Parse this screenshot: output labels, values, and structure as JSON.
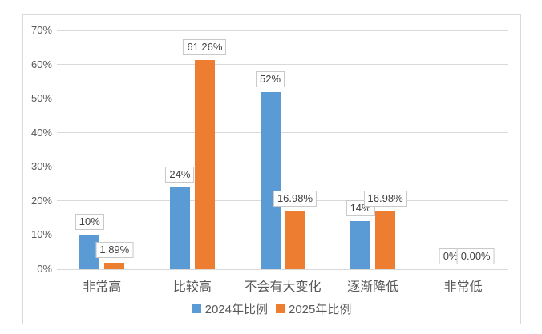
{
  "chart": {
    "background": "#ffffff",
    "border_color": "#d9d9d9",
    "gridline_color": "#d9d9d9",
    "axis_text_color": "#595959",
    "data_label_text_color": "#404040"
  },
  "chart_data": {
    "type": "bar",
    "title": "",
    "xlabel": "",
    "ylabel": "",
    "categories": [
      "非常高",
      "比较高",
      "不会有大变化",
      "逐渐降低",
      "非常低"
    ],
    "series": [
      {
        "name": "2024年比例",
        "color": "#5b9bd5",
        "values": [
          10,
          24,
          52,
          14,
          0
        ],
        "labels": [
          "10%",
          "24%",
          "52%",
          "14%",
          "0%"
        ]
      },
      {
        "name": "2025年比例",
        "color": "#ed7d31",
        "values": [
          1.89,
          61.26,
          16.98,
          16.98,
          0
        ],
        "labels": [
          "1.89%",
          "61.26%",
          "16.98%",
          "16.98%",
          "0.00%"
        ]
      }
    ],
    "y_axis": {
      "min": 0,
      "max": 70,
      "step": 10,
      "tick_labels": [
        "0%",
        "10%",
        "20%",
        "30%",
        "40%",
        "50%",
        "60%",
        "70%"
      ]
    },
    "grid": true,
    "legend_position": "bottom"
  }
}
